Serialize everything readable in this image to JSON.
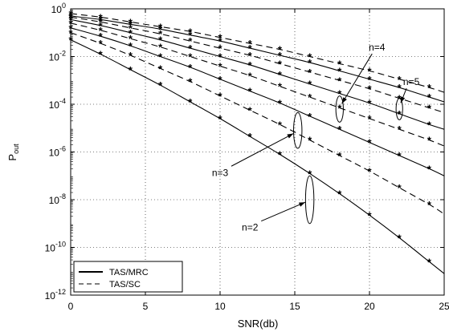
{
  "chart_data": {
    "type": "line",
    "xlabel": "SNR(db)",
    "ylabel_main": "P",
    "ylabel_sub": "out",
    "xlim": [
      0,
      25
    ],
    "ylim_log10": [
      -12,
      0
    ],
    "y_scale": "log",
    "grid": true,
    "x_ticks": [
      0,
      5,
      10,
      15,
      20,
      25
    ],
    "x_tick_labels": [
      "0",
      "5",
      "10",
      "15",
      "20",
      "25"
    ],
    "y_ticks_log10": [
      0,
      -2,
      -4,
      -6,
      -8,
      -10,
      -12
    ],
    "y_tick_labels": [
      {
        "base": "10",
        "exp": "0"
      },
      {
        "base": "10",
        "exp": "-2"
      },
      {
        "base": "10",
        "exp": "-4"
      },
      {
        "base": "10",
        "exp": "-6"
      },
      {
        "base": "10",
        "exp": "-8"
      },
      {
        "base": "10",
        "exp": "-10"
      },
      {
        "base": "10",
        "exp": "-12"
      }
    ],
    "legend": {
      "placement": "bottom-left",
      "entries": [
        {
          "label": "TAS/MRC",
          "style": "solid"
        },
        {
          "label": "TAS/SC",
          "style": "dashed"
        }
      ]
    },
    "series": [
      {
        "style": "solid",
        "markers": true,
        "x": [
          0,
          2,
          4,
          6,
          8,
          10,
          12,
          14,
          16,
          18,
          20,
          22,
          24,
          25
        ],
        "log10_y": [
          -1.3,
          -1.9,
          -2.55,
          -3.2,
          -3.9,
          -4.6,
          -5.35,
          -6.1,
          -6.9,
          -7.75,
          -8.65,
          -9.6,
          -10.6,
          -11.1
        ]
      },
      {
        "style": "dashed",
        "markers": true,
        "x": [
          0,
          2,
          4,
          6,
          8,
          10,
          12,
          14,
          16,
          18,
          20,
          22,
          24,
          25
        ],
        "log10_y": [
          -1.0,
          -1.45,
          -1.95,
          -2.5,
          -3.05,
          -3.65,
          -4.25,
          -4.85,
          -5.5,
          -6.15,
          -6.8,
          -7.5,
          -8.2,
          -8.6
        ]
      },
      {
        "style": "solid",
        "markers": true,
        "x": [
          0,
          2,
          4,
          6,
          8,
          10,
          12,
          14,
          16,
          18,
          20,
          22,
          24,
          25
        ],
        "log10_y": [
          -0.8,
          -1.15,
          -1.55,
          -2.0,
          -2.45,
          -2.95,
          -3.45,
          -3.95,
          -4.5,
          -5.05,
          -5.6,
          -6.15,
          -6.7,
          -7.0
        ]
      },
      {
        "style": "dashed",
        "markers": true,
        "x": [
          0,
          2,
          4,
          6,
          8,
          10,
          12,
          14,
          16,
          18,
          20,
          22,
          24,
          25
        ],
        "log10_y": [
          -0.6,
          -0.9,
          -1.25,
          -1.6,
          -2.0,
          -2.4,
          -2.8,
          -3.25,
          -3.7,
          -4.15,
          -4.6,
          -5.05,
          -5.5,
          -5.75
        ]
      },
      {
        "style": "solid",
        "markers": true,
        "x": [
          0,
          2,
          4,
          6,
          8,
          10,
          12,
          14,
          16,
          18,
          20,
          22,
          24,
          25
        ],
        "log10_y": [
          -0.45,
          -0.7,
          -1.0,
          -1.3,
          -1.65,
          -2.0,
          -2.35,
          -2.75,
          -3.15,
          -3.55,
          -3.95,
          -4.4,
          -4.85,
          -5.05
        ]
      },
      {
        "style": "dashed",
        "markers": true,
        "x": [
          0,
          2,
          4,
          6,
          8,
          10,
          12,
          14,
          16,
          18,
          20,
          22,
          24,
          25
        ],
        "log10_y": [
          -0.35,
          -0.55,
          -0.8,
          -1.05,
          -1.35,
          -1.65,
          -1.95,
          -2.3,
          -2.65,
          -3.0,
          -3.35,
          -3.75,
          -4.15,
          -4.35
        ]
      },
      {
        "style": "solid",
        "markers": true,
        "x": [
          0,
          2,
          4,
          6,
          8,
          10,
          12,
          14,
          16,
          18,
          20,
          22,
          24,
          25
        ],
        "log10_y": [
          -0.3,
          -0.45,
          -0.65,
          -0.85,
          -1.1,
          -1.35,
          -1.65,
          -1.95,
          -2.25,
          -2.6,
          -2.95,
          -3.3,
          -3.7,
          -3.9
        ]
      },
      {
        "style": "dashed",
        "markers": true,
        "x": [
          0,
          2,
          4,
          6,
          8,
          10,
          12,
          14,
          16,
          18,
          20,
          22,
          24,
          25
        ],
        "log10_y": [
          -0.2,
          -0.35,
          -0.55,
          -0.75,
          -0.95,
          -1.2,
          -1.45,
          -1.7,
          -2.0,
          -2.3,
          -2.6,
          -2.95,
          -3.3,
          -3.5
        ]
      }
    ],
    "annotations": [
      {
        "text": "n=2",
        "ellipse_center": [
          16.0,
          -8.0
        ],
        "ellipse_rx_data": 0.28,
        "ellipse_ry_decades": 1.0,
        "label_at": [
          12.0,
          -9.3
        ]
      },
      {
        "text": "n=3",
        "ellipse_center": [
          15.2,
          -5.1
        ],
        "ellipse_rx_data": 0.28,
        "ellipse_ry_decades": 0.75,
        "label_at": [
          10.0,
          -7.0
        ]
      },
      {
        "text": "n=4",
        "ellipse_center": [
          18.0,
          -4.2
        ],
        "ellipse_rx_data": 0.25,
        "ellipse_ry_decades": 0.55,
        "label_at": [
          20.5,
          -1.75
        ]
      },
      {
        "text": "n=5",
        "ellipse_center": [
          22.0,
          -4.2
        ],
        "ellipse_rx_data": 0.22,
        "ellipse_ry_decades": 0.45,
        "label_at": [
          22.8,
          -3.2
        ]
      }
    ]
  }
}
